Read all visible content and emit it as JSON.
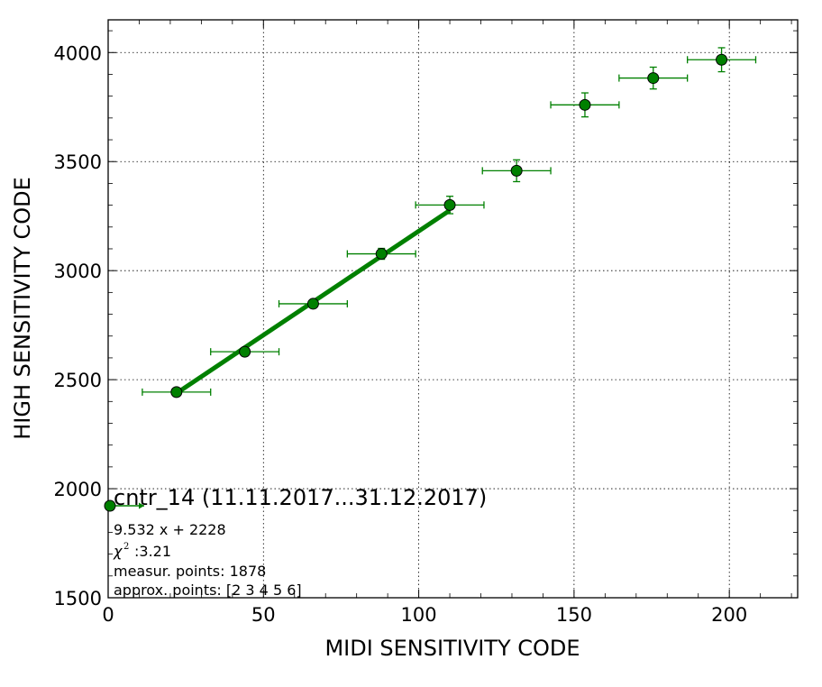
{
  "chart_data": {
    "type": "scatter",
    "xlabel": "MIDI SENSITIVITY CODE",
    "ylabel": "HIGH SENSITIVITY CODE",
    "xlim": [
      0,
      222
    ],
    "ylim": [
      1500,
      4150
    ],
    "x_ticks": [
      0,
      50,
      100,
      150,
      200
    ],
    "y_ticks": [
      1500,
      2000,
      2500,
      3000,
      3500,
      4000
    ],
    "grid": true,
    "series": [
      {
        "kind": "errorbar-points",
        "color": "#008000",
        "points": [
          {
            "x": 22,
            "y": 2443,
            "xerr": 11,
            "yerr": 10
          },
          {
            "x": 44,
            "y": 2628,
            "xerr": 11,
            "yerr": 10
          },
          {
            "x": 66,
            "y": 2848,
            "xerr": 11,
            "yerr": 10
          },
          {
            "x": 88,
            "y": 3077,
            "xerr": 11,
            "yerr": 25
          },
          {
            "x": 110,
            "y": 3301,
            "xerr": 11,
            "yerr": 40
          },
          {
            "x": 131.5,
            "y": 3458,
            "xerr": 11,
            "yerr": 50
          },
          {
            "x": 153.5,
            "y": 3760,
            "xerr": 11,
            "yerr": 55
          },
          {
            "x": 175.5,
            "y": 3883,
            "xerr": 11,
            "yerr": 50
          },
          {
            "x": 197.5,
            "y": 3967,
            "xerr": 11,
            "yerr": 55
          }
        ]
      },
      {
        "kind": "fit-line",
        "color": "#008000",
        "x": [
          22,
          110
        ],
        "y": [
          2437.7,
          3276.5
        ]
      }
    ],
    "legend": {
      "placement": "bottom-left",
      "title": "cntr_14 (11.11.2017...31.12.2017)",
      "lines": [
        "9.532 x + 2228",
        ":3.21",
        "measur. points: 1878",
        "approx. points: [2 3 4 5 6]"
      ],
      "chi_symbol": "χ",
      "chi_sup": "2"
    }
  }
}
